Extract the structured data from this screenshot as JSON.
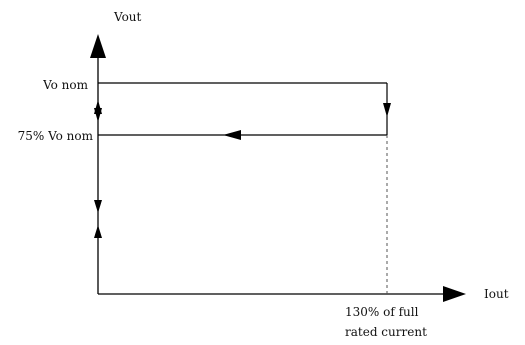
{
  "diagram": {
    "labels": {
      "y_axis": "Vout",
      "x_axis": "Iout",
      "vo_nom": "Vo nom",
      "vo_75": "75% Vo nom",
      "current_line1": "130% of full",
      "current_line2": "rated current"
    },
    "colors": {
      "line": "#000000",
      "dashed": "#555555",
      "text": "#111111"
    }
  }
}
